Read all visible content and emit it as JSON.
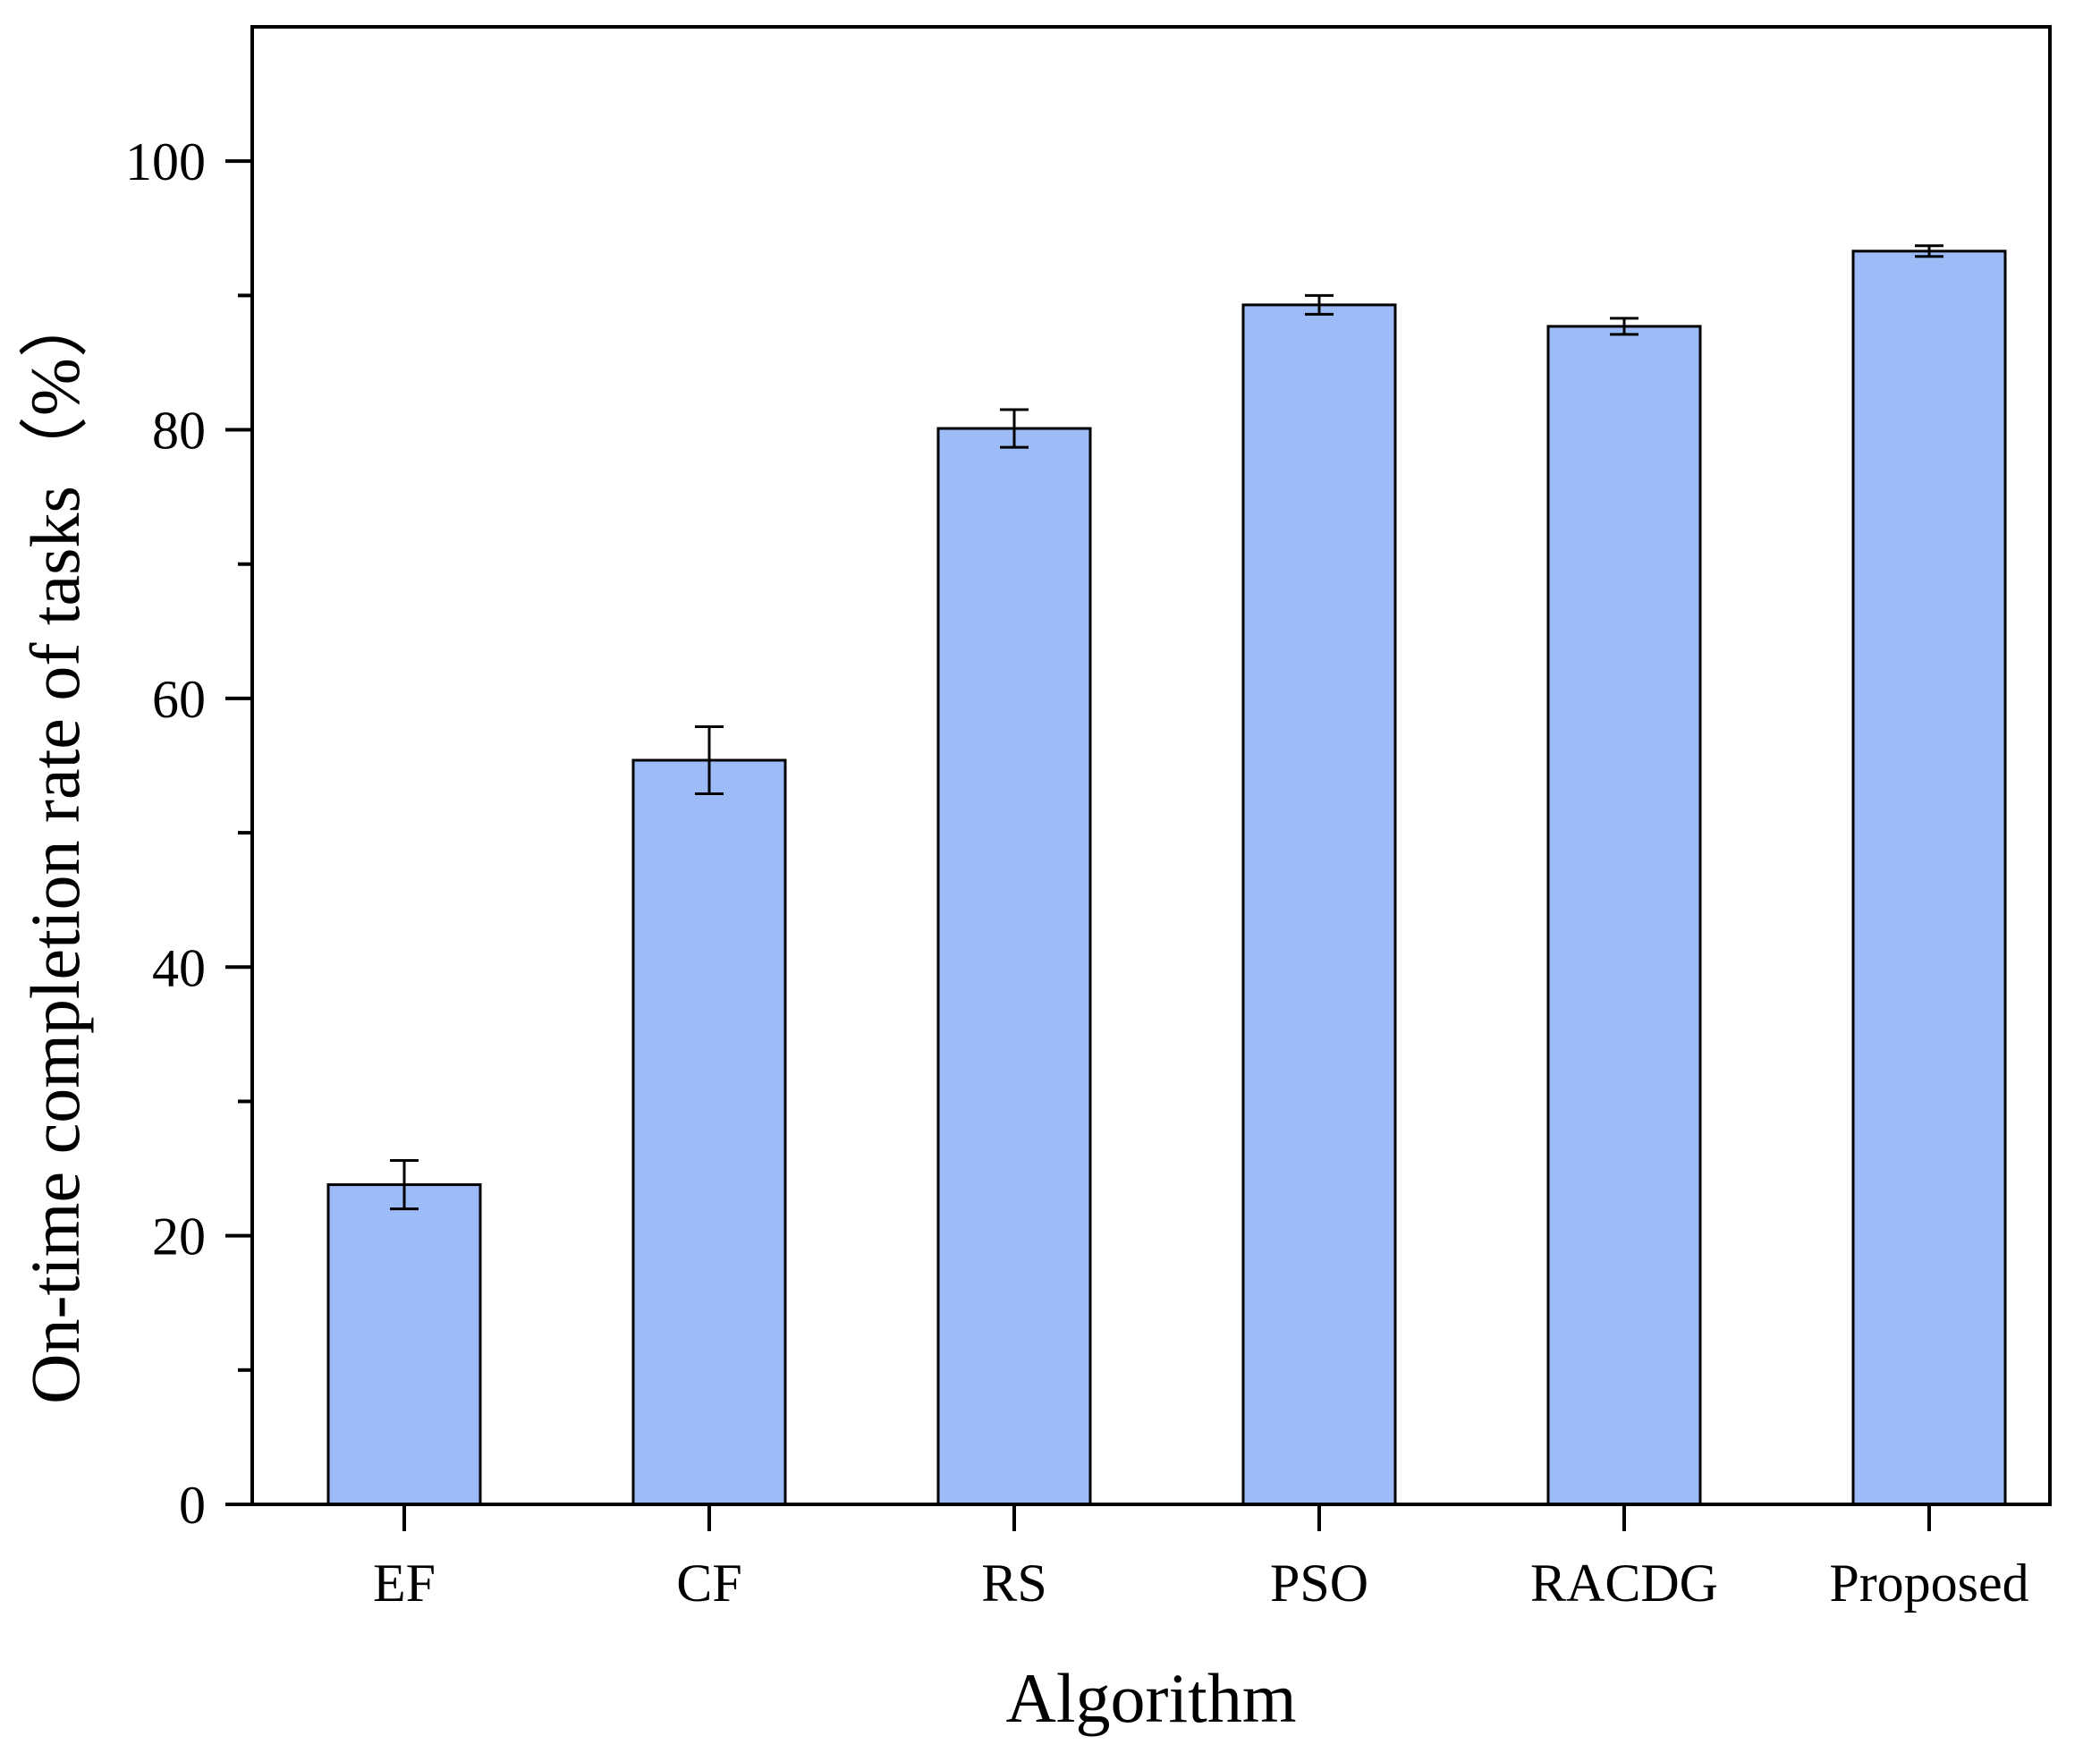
{
  "chart_data": {
    "type": "bar",
    "title": "",
    "xlabel": "Algorithm",
    "ylabel": "On-time completion rate of tasks（%）",
    "categories": [
      "EF",
      "CF",
      "RS",
      "PSO",
      "RACDG",
      "Proposed"
    ],
    "values": [
      23.8,
      55.4,
      80.1,
      89.3,
      87.7,
      93.3
    ],
    "errors": [
      1.8,
      2.5,
      1.4,
      0.7,
      0.6,
      0.4
    ],
    "ylim": [
      0,
      110
    ],
    "yticks": [
      0,
      20,
      40,
      60,
      80,
      100
    ],
    "yticks_minor": [
      10,
      30,
      50,
      70,
      90
    ],
    "grid": false,
    "bar_color": "#9dbcf7",
    "edge_color": "#000000"
  }
}
